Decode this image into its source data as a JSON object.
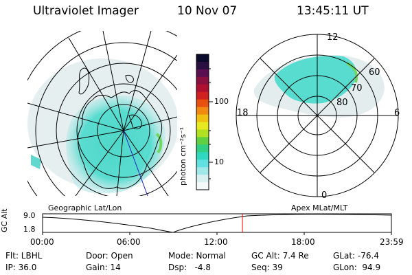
{
  "header": {
    "instrument": "Ultraviolet Imager",
    "date": "10 Nov 07",
    "time": "13:45:11 UT"
  },
  "colorbar": {
    "label": "photon cm⁻²s⁻¹",
    "ticks": [
      "100",
      "10"
    ],
    "colors": [
      "#0a0a2a",
      "#2a1040",
      "#5a1050",
      "#8a1040",
      "#b01030",
      "#d02020",
      "#e85010",
      "#f08a10",
      "#f0c010",
      "#e8e820",
      "#b0e020",
      "#60d040",
      "#30d080",
      "#30d8c0",
      "#60e0e0",
      "#a0e8e8",
      "#d8f0f0",
      "#f4f8f8"
    ]
  },
  "left_panel": {
    "title": "Geographic Lat/Lon"
  },
  "right_panel": {
    "title": "Apex MLat/MLT",
    "mlt_labels": {
      "top": "12",
      "left": "18",
      "right": "6",
      "bottom": "0"
    },
    "lat_labels": [
      "60",
      "70",
      "80"
    ]
  },
  "altitude_plot": {
    "ylabel": "GC Alt",
    "ymax": "9.0",
    "ymin": "1.8",
    "x_ticks": [
      "00:00",
      "06:00",
      "12:00",
      "18:00",
      "23:59"
    ],
    "current_time_fraction": 0.573,
    "marker_color": "#ff0000"
  },
  "status": {
    "flt": "Flt: LBHL",
    "ip": "IP: 36.0",
    "door": "Door: Open",
    "gain": "Gain: 14",
    "mode": "Mode: Normal",
    "dsp": "Dsp:   -4.8",
    "gcalt": "GC Alt: 7.4 Re",
    "seq": "Seq: 39",
    "glat": "GLat: -76.4",
    "glon": "GLon:  94.9"
  }
}
